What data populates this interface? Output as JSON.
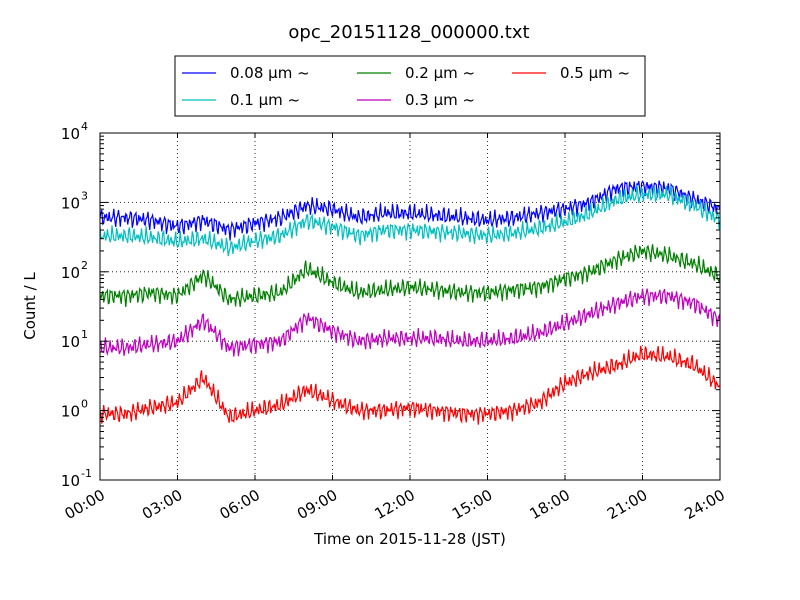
{
  "chart_data": {
    "type": "line",
    "title": "opc_20151128_000000.txt",
    "xlabel": "Time on 2015-11-28 (JST)",
    "ylabel": "Count / L",
    "y_scale": "log",
    "ylim": [
      0.1,
      10000
    ],
    "xlim": [
      "2015-11-28 00:00",
      "2015-11-29 00:00"
    ],
    "grid": true,
    "legend_position": "top-center",
    "x_ticks": [
      "00:00",
      "03:00",
      "06:00",
      "09:00",
      "12:00",
      "15:00",
      "18:00",
      "21:00",
      "24:00"
    ],
    "y_ticks": [
      {
        "value": 0.1,
        "base": "10",
        "exp": "-1"
      },
      {
        "value": 1,
        "base": "10",
        "exp": "0"
      },
      {
        "value": 10,
        "base": "10",
        "exp": "1"
      },
      {
        "value": 100,
        "base": "10",
        "exp": "2"
      },
      {
        "value": 1000,
        "base": "10",
        "exp": "3"
      },
      {
        "value": 10000,
        "base": "10",
        "exp": "4"
      }
    ],
    "x": [
      "2015-11-28 01:00",
      "2015-11-28 02:00",
      "2015-11-28 03:00",
      "2015-11-28 04:00",
      "2015-11-28 05:00",
      "2015-11-28 06:00",
      "2015-11-28 07:00",
      "2015-11-28 08:00",
      "2015-11-28 09:00",
      "2015-11-28 10:00",
      "2015-11-28 11:00",
      "2015-11-28 12:00",
      "2015-11-28 13:00",
      "2015-11-28 14:00",
      "2015-11-28 15:00",
      "2015-11-28 16:00",
      "2015-11-28 17:00",
      "2015-11-28 18:00",
      "2015-11-28 19:00",
      "2015-11-28 20:00",
      "2015-11-28 21:00",
      "2015-11-28 22:00",
      "2015-11-28 23:00",
      "2015-11-29 00:00"
    ],
    "series": [
      {
        "name": "0.08 μm ~",
        "color": "#0000ff",
        "values": [
          600,
          550,
          450,
          550,
          400,
          500,
          600,
          900,
          800,
          600,
          700,
          700,
          650,
          600,
          550,
          600,
          700,
          800,
          1000,
          1600,
          1700,
          1600,
          1100,
          800
        ]
      },
      {
        "name": "0.1 μm ~",
        "color": "#00bfbf",
        "values": [
          330,
          310,
          270,
          300,
          220,
          280,
          330,
          550,
          450,
          330,
          400,
          400,
          380,
          360,
          330,
          360,
          420,
          520,
          700,
          1100,
          1300,
          1300,
          900,
          560
        ]
      },
      {
        "name": "0.2 μm ~",
        "color": "#008000",
        "values": [
          45,
          50,
          45,
          90,
          40,
          45,
          50,
          110,
          70,
          50,
          55,
          60,
          55,
          50,
          50,
          55,
          60,
          80,
          100,
          150,
          200,
          170,
          130,
          85
        ]
      },
      {
        "name": "0.3 μm ~",
        "color": "#bf00bf",
        "values": [
          8,
          9,
          10,
          20,
          8,
          9,
          10,
          22,
          14,
          10,
          11,
          11,
          11,
          10,
          10,
          11,
          13,
          18,
          25,
          35,
          45,
          45,
          35,
          20
        ]
      },
      {
        "name": "0.5 μm ~",
        "color": "#ff0000",
        "values": [
          0.9,
          1.1,
          1.3,
          3.0,
          0.8,
          1.0,
          1.2,
          2.0,
          1.4,
          1.0,
          1.0,
          1.1,
          1.0,
          0.9,
          0.9,
          1.0,
          1.3,
          2.5,
          3.5,
          4.5,
          6.5,
          6.0,
          4.5,
          2.2
        ]
      }
    ]
  }
}
